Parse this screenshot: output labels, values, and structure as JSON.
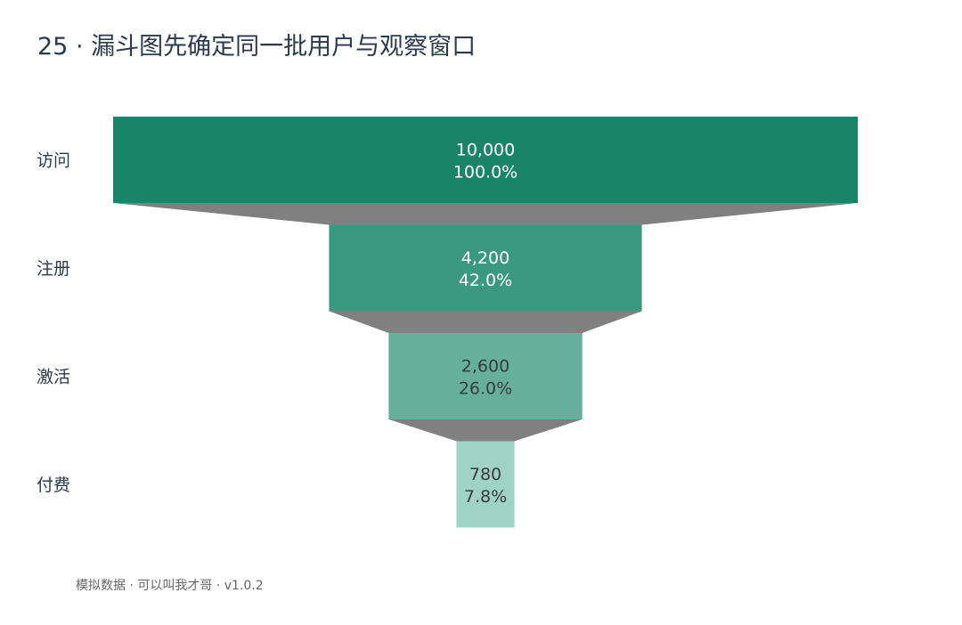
{
  "title": "25 · 漏斗图先确定同一批用户与观察窗口",
  "footnote": "模拟数据 · 可以叫我才哥 · v1.0.2",
  "chart_data": {
    "type": "funnel",
    "stages": [
      "访问",
      "注册",
      "激活",
      "付费"
    ],
    "values": [
      10000,
      4200,
      2600,
      780
    ],
    "value_labels": [
      "10,000",
      "4,200",
      "2,600",
      "780"
    ],
    "percent_labels": [
      "100.0%",
      "42.0%",
      "26.0%",
      "7.8%"
    ],
    "colors": [
      "#1a8469",
      "#3a9a80",
      "#66b09b",
      "#9fd4c4"
    ],
    "label_colors": [
      "#ffffff",
      "#ffffff",
      "#3a3a3a",
      "#3a3a3a"
    ],
    "connector_color": "#808080",
    "stage_label_color": "#2b3a4f"
  }
}
